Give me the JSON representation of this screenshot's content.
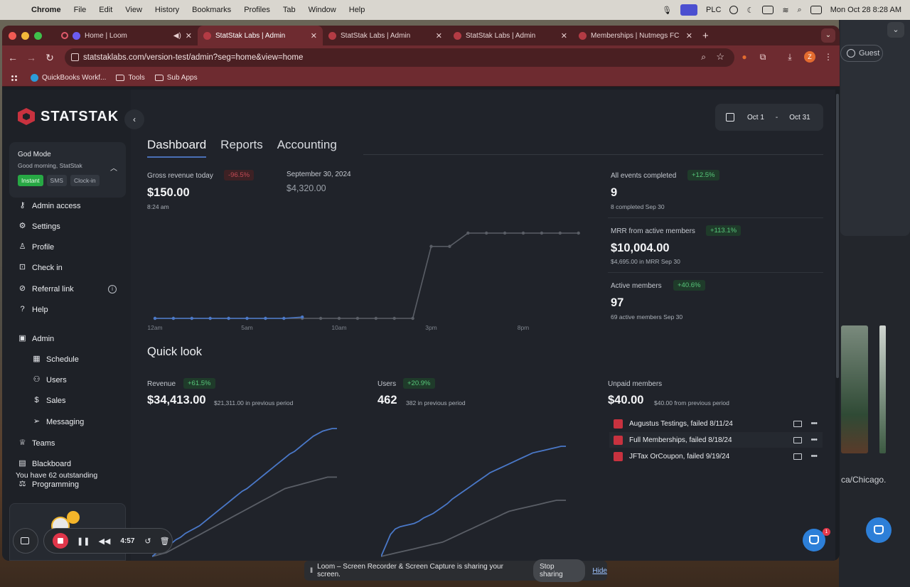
{
  "menubar": {
    "app": "Chrome",
    "items": [
      "File",
      "Edit",
      "View",
      "History",
      "Bookmarks",
      "Profiles",
      "Tab",
      "Window",
      "Help"
    ],
    "status_plc": "PLC",
    "clock": "Mon Oct 28  8:28 AM"
  },
  "browser": {
    "tabs": [
      {
        "title": "Home | Loom"
      },
      {
        "title": "StatStak Labs | Admin"
      },
      {
        "title": "StatStak Labs | Admin"
      },
      {
        "title": "StatStak Labs | Admin"
      },
      {
        "title": "Memberships | Nutmegs FC"
      }
    ],
    "url": "statstaklabs.com/version-test/admin?seg=home&view=home",
    "profile_initial": "Z",
    "guest_label": "Guest",
    "bookmarks": [
      "QuickBooks Workf...",
      "Tools",
      "Sub Apps"
    ]
  },
  "sidebar": {
    "brand": "STATSTAK",
    "god_card": {
      "title": "God Mode",
      "greeting": "Good morning, StatStak",
      "chips": [
        "Instant",
        "SMS",
        "Clock-in"
      ]
    },
    "items": [
      {
        "label": "Admin access",
        "icon": "key-icon"
      },
      {
        "label": "Settings",
        "icon": "gear-icon"
      },
      {
        "label": "Profile",
        "icon": "person-icon"
      },
      {
        "label": "Check in",
        "icon": "checkin-icon"
      },
      {
        "label": "Referral link",
        "icon": "link-icon"
      },
      {
        "label": "Help",
        "icon": "help-icon"
      },
      {
        "label": "Admin",
        "icon": "briefcase-icon"
      },
      {
        "label": "Schedule",
        "icon": "calendar-icon"
      },
      {
        "label": "Users",
        "icon": "users-icon"
      },
      {
        "label": "Sales",
        "icon": "dollar-icon"
      },
      {
        "label": "Messaging",
        "icon": "send-icon"
      },
      {
        "label": "Teams",
        "icon": "trophy-icon"
      },
      {
        "label": "Blackboard",
        "icon": "board-icon"
      },
      {
        "label": "Programming",
        "icon": "dumbbell-icon"
      }
    ],
    "outstanding": "You have 62 outstanding"
  },
  "main": {
    "date_from": "Oct 1",
    "date_sep": "-",
    "date_to": "Oct 31",
    "tabs": [
      "Dashboard",
      "Reports",
      "Accounting"
    ],
    "gross": {
      "label": "Gross revenue today",
      "badge": "-96.5%",
      "value": "$150.00",
      "time": "8:24 am"
    },
    "compare": {
      "date": "September 30, 2024",
      "value": "$4,320.00"
    },
    "stats": [
      {
        "label": "All events completed",
        "badge": "+12.5%",
        "value": "9",
        "sub": "8 completed Sep 30"
      },
      {
        "label": "MRR from active members",
        "badge": "+113.1%",
        "value": "$10,004.00",
        "sub": "$4,695.00 in MRR Sep 30"
      },
      {
        "label": "Active members",
        "badge": "+40.6%",
        "value": "97",
        "sub": "69 active members Sep 30"
      }
    ],
    "quick_look_title": "Quick look",
    "quick": [
      {
        "label": "Revenue",
        "badge": "+61.5%",
        "value": "$34,413.00",
        "sub": "$21,311.00 in previous period"
      },
      {
        "label": "Users",
        "badge": "+20.9%",
        "value": "462",
        "sub": "382 in previous period"
      },
      {
        "label": "Unpaid members",
        "value": "$40.00",
        "sub": "$40.00 from previous period"
      }
    ],
    "unpaid": [
      "Augustus Testings, failed 8/11/24",
      "Full Memberships, failed 8/18/24",
      "JFTax OrCoupon, failed 9/19/24"
    ]
  },
  "chart_data": [
    {
      "type": "line",
      "x": [
        "12am",
        "1am",
        "2am",
        "3am",
        "4am",
        "5am",
        "6am",
        "7am",
        "8am",
        "9am",
        "10am",
        "11am",
        "12pm",
        "1pm",
        "2pm",
        "3pm",
        "4pm",
        "5pm",
        "6pm",
        "7pm",
        "8pm",
        "9pm",
        "10pm",
        "11pm"
      ],
      "xticks": [
        "12am",
        "5am",
        "10am",
        "3pm",
        "8pm"
      ],
      "series": [
        {
          "values": [
            0,
            0,
            0,
            0,
            0,
            0,
            0,
            0,
            5,
            null,
            null,
            null,
            null,
            null,
            null,
            null,
            null,
            null,
            null,
            null,
            null,
            null,
            null,
            null
          ],
          "color": "#4a78c8"
        },
        {
          "values": [
            0,
            0,
            0,
            0,
            0,
            0,
            0,
            0,
            0,
            0,
            0,
            0,
            0,
            0,
            0,
            270,
            270,
            320,
            320,
            320,
            320,
            320,
            320,
            320
          ],
          "color": "#5a5e66"
        }
      ]
    },
    {
      "type": "line",
      "series": [
        {
          "values": [
            0,
            3,
            5,
            7,
            10,
            13,
            15,
            18,
            20,
            22,
            24,
            27,
            30,
            33,
            36,
            39,
            42,
            45,
            48,
            51,
            53,
            56,
            59,
            62,
            65,
            68,
            71,
            74,
            77,
            80,
            82,
            85,
            88,
            91,
            94,
            96,
            98,
            99,
            100,
            100
          ],
          "color": "#4a78c8"
        },
        {
          "values": [
            0,
            1,
            2,
            3,
            5,
            7,
            9,
            11,
            13,
            15,
            17,
            19,
            21,
            23,
            25,
            27,
            29,
            31,
            33,
            35,
            37,
            39,
            41,
            43,
            45,
            47,
            49,
            51,
            53,
            54,
            55,
            56,
            57,
            58,
            59,
            60,
            61,
            62,
            62,
            62
          ],
          "color": "#5a5e66"
        }
      ]
    },
    {
      "type": "line",
      "series": [
        {
          "values": [
            0,
            10,
            20,
            25,
            27,
            28,
            29,
            30,
            32,
            35,
            37,
            39,
            42,
            45,
            48,
            52,
            55,
            58,
            61,
            64,
            67,
            70,
            73,
            76,
            78,
            80,
            82,
            84,
            86,
            88,
            90,
            92,
            94,
            95,
            96,
            97,
            98,
            99,
            100,
            100
          ],
          "color": "#4a78c8"
        },
        {
          "values": [
            0,
            1,
            2,
            3,
            4,
            5,
            6,
            7,
            8,
            9,
            10,
            11,
            12,
            13,
            15,
            17,
            19,
            21,
            23,
            25,
            27,
            29,
            31,
            33,
            35,
            37,
            39,
            41,
            42,
            43,
            44,
            45,
            46,
            47,
            48,
            49,
            50,
            51,
            51,
            51
          ],
          "color": "#5a5e66"
        }
      ]
    }
  ]
}
